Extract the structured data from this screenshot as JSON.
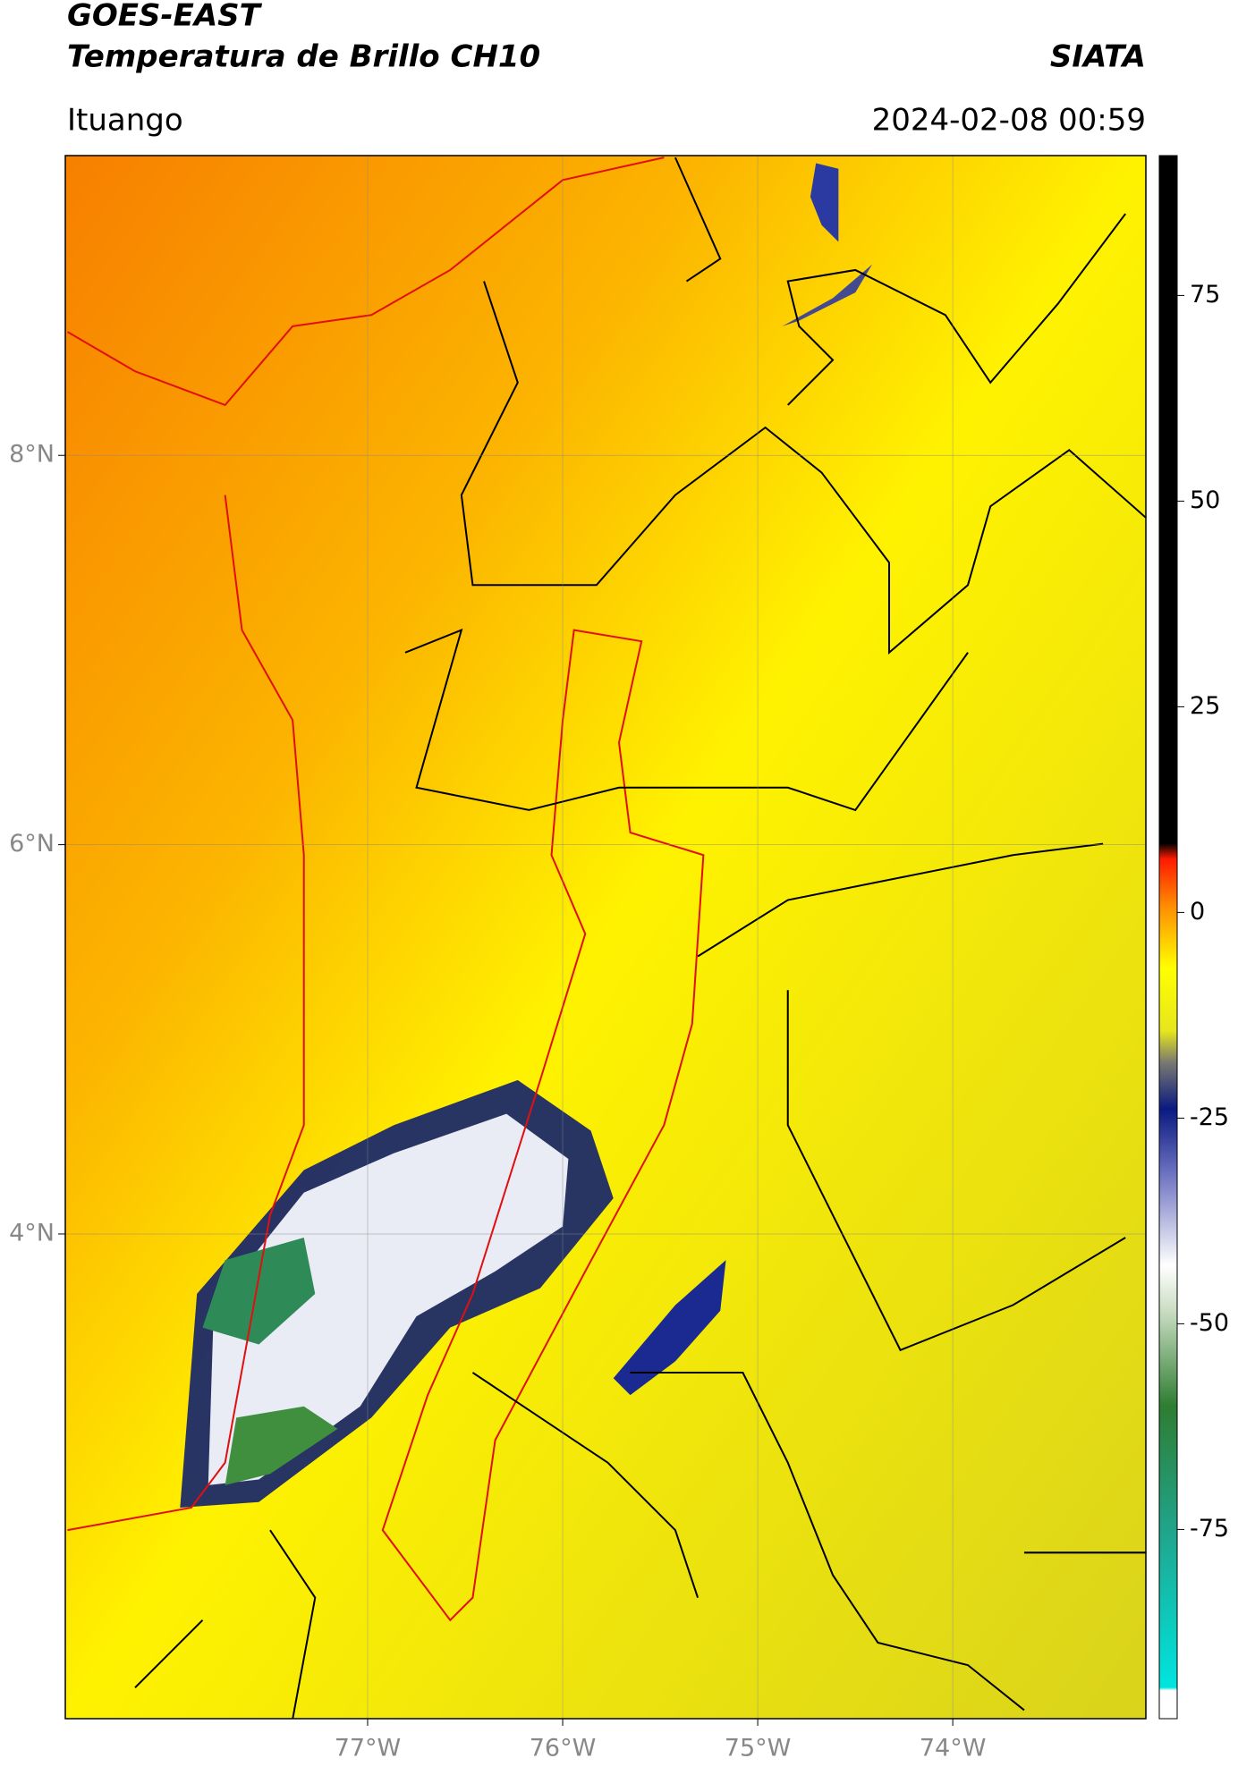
{
  "header": {
    "title": "GOES-EAST",
    "subtitle": "Temperatura de Brillo CH10",
    "org": "SIATA",
    "location": "Ituango",
    "datetime": "2024-02-08 00:59"
  },
  "map": {
    "type": "map",
    "xlim": [
      -78.55,
      -73.01
    ],
    "ylim": [
      1.51,
      9.54
    ],
    "xticks": [
      {
        "value": -77,
        "label": "77°W"
      },
      {
        "value": -76,
        "label": "76°W"
      },
      {
        "value": -75,
        "label": "75°W"
      },
      {
        "value": -74,
        "label": "74°W"
      }
    ],
    "yticks": [
      {
        "value": 8,
        "label": "8°N"
      },
      {
        "value": 6,
        "label": "6°N"
      },
      {
        "value": 4,
        "label": "4°N"
      }
    ],
    "grid": true
  },
  "colorbar": {
    "clim": [
      -98,
      92
    ],
    "ticks": [
      75,
      50,
      25,
      0,
      -25,
      -50,
      -75
    ]
  }
}
